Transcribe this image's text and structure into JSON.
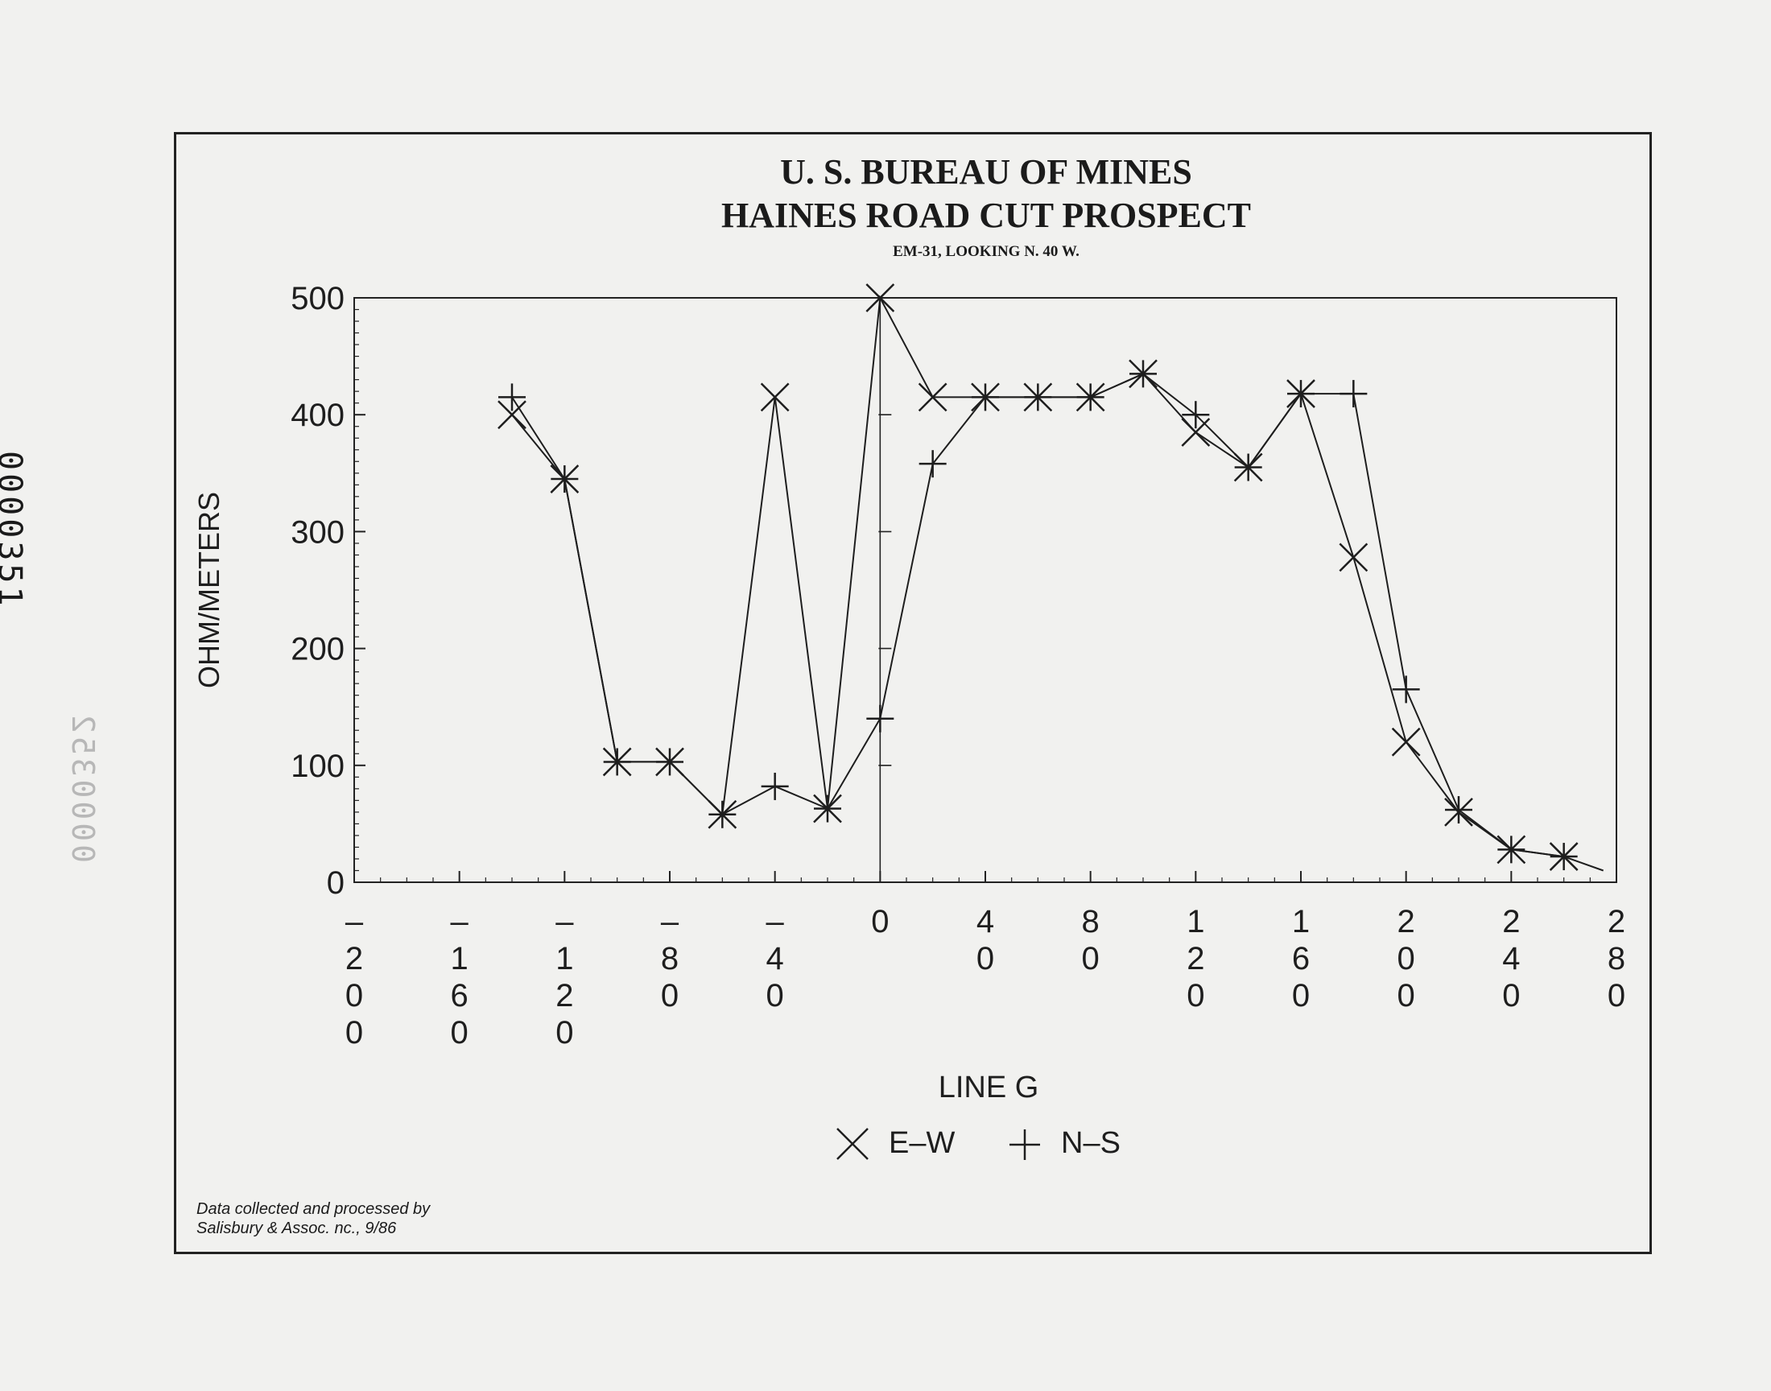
{
  "side_ids": [
    "0000351",
    "0000352"
  ],
  "credit": {
    "line1": "Data collected and processed by",
    "line2": "Salisbury & Assoc. nc., 9/86"
  },
  "chart_data": {
    "type": "line",
    "title": "U. S. BUREAU OF MINES",
    "subtitle": "HAINES ROAD CUT PROSPECT",
    "subtitle2": "EM-31, LOOKING N. 40 W.",
    "xlabel": "LINE G",
    "ylabel": "OHM/METERS",
    "xlim": [
      -200,
      280
    ],
    "ylim": [
      0,
      500
    ],
    "grid": false,
    "legend_position": "bottom-center",
    "x_ticks": [
      -200,
      -160,
      -120,
      -80,
      -40,
      0,
      40,
      80,
      120,
      160,
      200,
      240,
      280
    ],
    "x_tick_labels": [
      [
        "–",
        "2",
        "0",
        "0"
      ],
      [
        "–",
        "1",
        "6",
        "0"
      ],
      [
        "–",
        "1",
        "2",
        "0"
      ],
      [
        "–",
        "8",
        "0"
      ],
      [
        "–",
        "4",
        "0"
      ],
      [
        "0"
      ],
      [
        "4",
        "0"
      ],
      [
        "8",
        "0"
      ],
      [
        "1",
        "2",
        "0"
      ],
      [
        "1",
        "6",
        "0"
      ],
      [
        "2",
        "0",
        "0"
      ],
      [
        "2",
        "4",
        "0"
      ],
      [
        "2",
        "8",
        "0"
      ]
    ],
    "y_ticks": [
      0,
      100,
      200,
      300,
      400,
      500
    ],
    "y_tick_labels": [
      "0",
      "100",
      "200",
      "300",
      "400",
      "500"
    ],
    "series": [
      {
        "name": "E–W",
        "marker": "x",
        "x": [
          -140,
          -120,
          -100,
          -80,
          -60,
          -40,
          -20,
          0,
          20,
          40,
          60,
          80,
          100,
          120,
          140,
          160,
          180,
          200,
          220,
          240,
          260
        ],
        "y": [
          400,
          345,
          103,
          103,
          58,
          415,
          63,
          500,
          415,
          415,
          415,
          415,
          435,
          385,
          355,
          418,
          278,
          120,
          60,
          28,
          22
        ]
      },
      {
        "name": "N–S",
        "marker": "+",
        "x": [
          -140,
          -120,
          -100,
          -80,
          -60,
          -40,
          -20,
          0,
          20,
          40,
          60,
          80,
          100,
          120,
          140,
          160,
          180,
          200,
          220,
          240,
          260,
          275
        ],
        "y": [
          415,
          345,
          103,
          103,
          58,
          82,
          63,
          140,
          358,
          415,
          415,
          415,
          435,
          400,
          355,
          418,
          418,
          165,
          62,
          28,
          22,
          10
        ]
      }
    ]
  }
}
